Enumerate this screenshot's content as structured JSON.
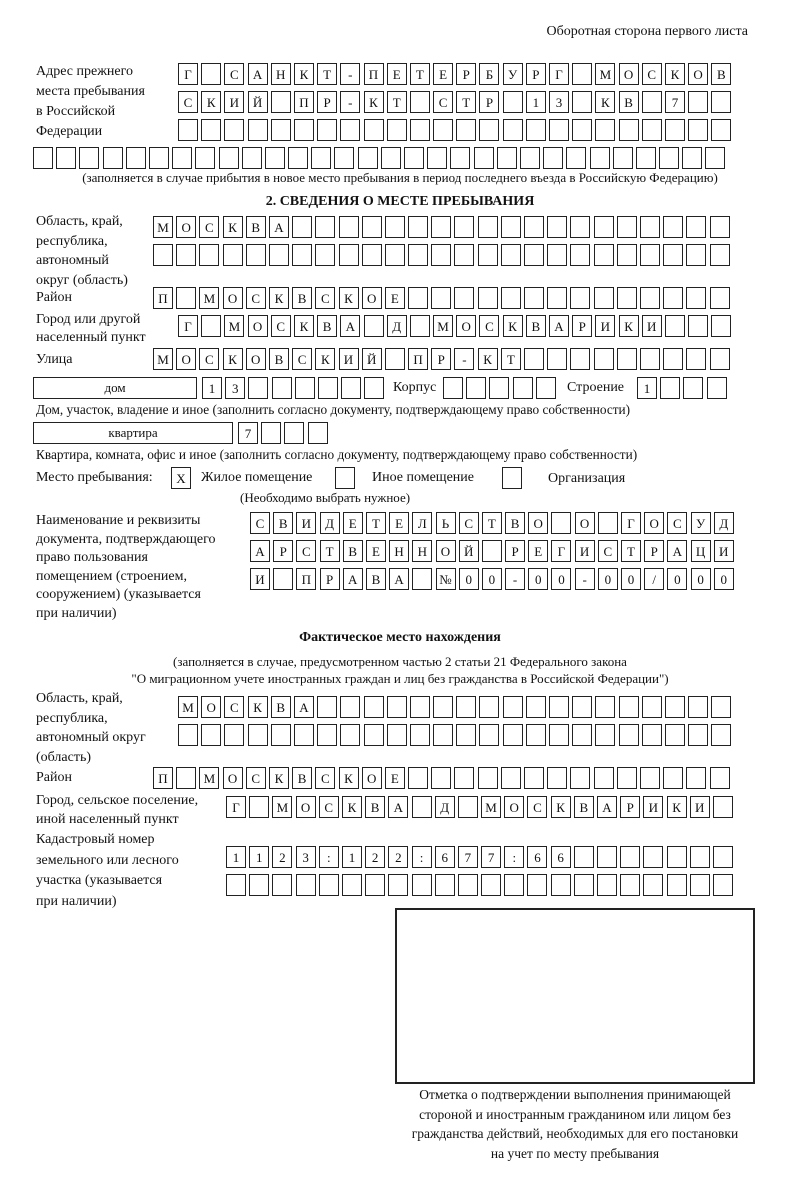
{
  "header": "Оборотная сторона первого листа",
  "previous_address": {
    "label": "Адрес прежнего\nместа пребывания\nв Российской\nФедерации",
    "rows": [
      [
        "Г",
        "",
        "С",
        "А",
        "Н",
        "К",
        "Т",
        "-",
        "П",
        "Е",
        "Т",
        "Е",
        "Р",
        "Б",
        "У",
        "Р",
        "Г",
        "",
        "М",
        "О",
        "С",
        "К",
        "О",
        "В"
      ],
      [
        "С",
        "К",
        "И",
        "Й",
        "",
        "П",
        "Р",
        "-",
        "К",
        "Т",
        "",
        "С",
        "Т",
        "Р",
        "",
        "1",
        "3",
        "",
        "К",
        "В",
        "",
        "7",
        "",
        ""
      ],
      [
        "",
        "",
        "",
        "",
        "",
        "",
        "",
        "",
        "",
        "",
        "",
        "",
        "",
        "",
        "",
        "",
        "",
        "",
        "",
        "",
        "",
        "",
        "",
        ""
      ],
      [
        "",
        "",
        "",
        "",
        "",
        "",
        "",
        "",
        "",
        "",
        "",
        "",
        "",
        "",
        "",
        "",
        "",
        "",
        "",
        "",
        "",
        "",
        "",
        "",
        "",
        "",
        "",
        "",
        "",
        ""
      ]
    ],
    "note": "(заполняется в случае прибытия в новое место пребывания в период последнего въезда в Российскую Федерацию)"
  },
  "section2": {
    "title": "2. СВЕДЕНИЯ О МЕСТЕ ПРЕБЫВАНИЯ",
    "region_label": "Область, край,\nреспублика,\nавтономный\nокруг (область)",
    "region_rows": [
      [
        "М",
        "О",
        "С",
        "К",
        "В",
        "А",
        "",
        "",
        "",
        "",
        "",
        "",
        "",
        "",
        "",
        "",
        "",
        "",
        "",
        "",
        "",
        "",
        "",
        "",
        ""
      ],
      [
        "",
        "",
        "",
        "",
        "",
        "",
        "",
        "",
        "",
        "",
        "",
        "",
        "",
        "",
        "",
        "",
        "",
        "",
        "",
        "",
        "",
        "",
        "",
        "",
        ""
      ]
    ],
    "district_label": "Район",
    "district_row": [
      "П",
      "",
      "М",
      "О",
      "С",
      "К",
      "В",
      "С",
      "К",
      "О",
      "Е",
      "",
      "",
      "",
      "",
      "",
      "",
      "",
      "",
      "",
      "",
      "",
      "",
      "",
      ""
    ],
    "city_label": "Город или другой\nнаселенный пункт",
    "city_row": [
      "Г",
      "",
      "М",
      "О",
      "С",
      "К",
      "В",
      "А",
      "",
      "Д",
      "",
      "М",
      "О",
      "С",
      "К",
      "В",
      "А",
      "Р",
      "И",
      "К",
      "И",
      "",
      "",
      ""
    ],
    "street_label": "Улица",
    "street_row": [
      "М",
      "О",
      "С",
      "К",
      "О",
      "В",
      "С",
      "К",
      "И",
      "Й",
      "",
      "П",
      "Р",
      "-",
      "К",
      "Т",
      "",
      "",
      "",
      "",
      "",
      "",
      "",
      "",
      ""
    ],
    "house_type": "дом",
    "house_row": [
      "1",
      "3",
      "",
      "",
      "",
      "",
      "",
      ""
    ],
    "building_label": "Корпус",
    "building_row": [
      "",
      "",
      "",
      "",
      ""
    ],
    "structure_label": "Строение",
    "structure_row": [
      "1",
      "",
      "",
      ""
    ],
    "house_note": "Дом, участок, владение и иное (заполнить согласно документу, подтверждающему право собственности)",
    "apartment_type": "квартира",
    "apartment_row": [
      "7",
      "",
      "",
      ""
    ],
    "apartment_note": "Квартира, комната, офис и иное (заполнить согласно документу, подтверждающему право собственности)",
    "stay_place_label": "Место пребывания:",
    "options": [
      {
        "mark": "X",
        "label": "Жилое помещение",
        "checked": true
      },
      {
        "mark": "",
        "label": "Иное помещение",
        "checked": false
      },
      {
        "mark": "",
        "label": "Организация",
        "checked": false
      }
    ],
    "choose_note": "(Необходимо выбрать нужное)",
    "document_label": "Наименование и реквизиты\nдокумента, подтверждающего\nправо пользования\nпомещением (строением,\nсооружением) (указывается\nпри наличии)",
    "document_rows": [
      [
        "С",
        "В",
        "И",
        "Д",
        "Е",
        "Т",
        "Е",
        "Л",
        "Ь",
        "С",
        "Т",
        "В",
        "О",
        "",
        "О",
        "",
        "Г",
        "О",
        "С",
        "У",
        "Д"
      ],
      [
        "А",
        "Р",
        "С",
        "Т",
        "В",
        "Е",
        "Н",
        "Н",
        "О",
        "Й",
        "",
        "Р",
        "Е",
        "Г",
        "И",
        "С",
        "Т",
        "Р",
        "А",
        "Ц",
        "И"
      ],
      [
        "И",
        "",
        "П",
        "Р",
        "А",
        "В",
        "А",
        "",
        "№",
        "0",
        "0",
        "-",
        "0",
        "0",
        "-",
        "0",
        "0",
        "/",
        "0",
        "0",
        "0"
      ]
    ]
  },
  "actual": {
    "title": "Фактическое место нахождения",
    "note1": "(заполняется в случае, предусмотренном частью 2 статьи 21 Федерального закона",
    "note2": "\"О миграционном учете иностранных граждан и лиц без гражданства в Российской Федерации\")",
    "region_label": "Область, край,\nреспублика,\nавтономный округ\n(область)",
    "region_rows": [
      [
        "М",
        "О",
        "С",
        "К",
        "В",
        "А",
        "",
        "",
        "",
        "",
        "",
        "",
        "",
        "",
        "",
        "",
        "",
        "",
        "",
        "",
        "",
        "",
        "",
        ""
      ],
      [
        "",
        "",
        "",
        "",
        "",
        "",
        "",
        "",
        "",
        "",
        "",
        "",
        "",
        "",
        "",
        "",
        "",
        "",
        "",
        "",
        "",
        "",
        "",
        ""
      ]
    ],
    "district_label": "Район",
    "district_row": [
      "П",
      "",
      "М",
      "О",
      "С",
      "К",
      "В",
      "С",
      "К",
      "О",
      "Е",
      "",
      "",
      "",
      "",
      "",
      "",
      "",
      "",
      "",
      "",
      "",
      "",
      "",
      ""
    ],
    "city_label": "Город, сельское поселение,\nиной населенный пункт",
    "city_row": [
      "Г",
      "",
      "М",
      "О",
      "С",
      "К",
      "В",
      "А",
      "",
      "Д",
      "",
      "М",
      "О",
      "С",
      "К",
      "В",
      "А",
      "Р",
      "И",
      "К",
      "И",
      ""
    ],
    "cadastral_label": "Кадастровый номер\nземельного или лесного\nучастка (указывается\nпри наличии)",
    "cadastral_rows": [
      [
        "1",
        "1",
        "2",
        "3",
        ":",
        "1",
        "2",
        "2",
        ":",
        "6",
        "7",
        "7",
        ":",
        "6",
        "6",
        "",
        "",
        "",
        "",
        "",
        "",
        ""
      ],
      [
        "",
        "",
        "",
        "",
        "",
        "",
        "",
        "",
        "",
        "",
        "",
        "",
        "",
        "",
        "",
        "",
        "",
        "",
        "",
        "",
        "",
        ""
      ]
    ]
  },
  "confirmation_note": "Отметка о подтверждении выполнения принимающей\nстороной и иностранным гражданином или лицом без\nгражданства действий, необходимых для его постановки\nна учет по месту пребывания"
}
